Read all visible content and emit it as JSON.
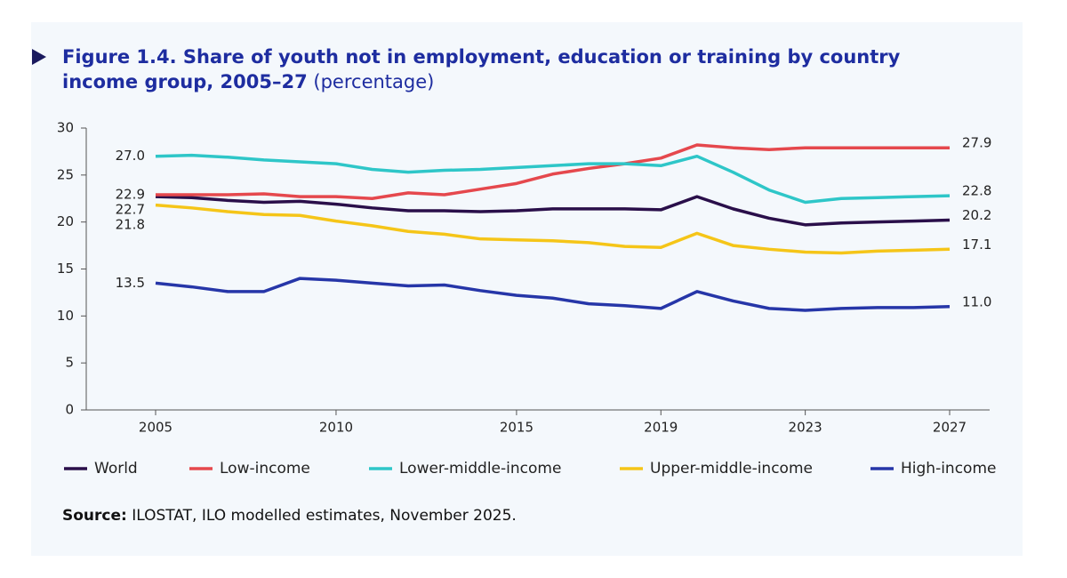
{
  "chart_data": {
    "type": "line",
    "title": "Figure 1.4. Share of youth not in employment, education or training by country income group, 2005–27",
    "title_note": "(percentage)",
    "source_label": "Source:",
    "source": "ILOSTAT, ILO modelled estimates, November 2025.",
    "x": [
      2005,
      2006,
      2007,
      2008,
      2009,
      2010,
      2011,
      2012,
      2013,
      2014,
      2015,
      2016,
      2017,
      2018,
      2019,
      2020,
      2021,
      2022,
      2023,
      2024,
      2025,
      2026,
      2027
    ],
    "xlim": [
      2005,
      2027
    ],
    "xticks": [
      2005,
      2010,
      2015,
      2019,
      2023,
      2027
    ],
    "ylim": [
      0,
      30
    ],
    "yticks": [
      0,
      5,
      10,
      15,
      20,
      25,
      30
    ],
    "grid": false,
    "legend": "bottom",
    "series": [
      {
        "name": "World",
        "color": "#2a0f4a",
        "values": [
          22.7,
          22.6,
          22.3,
          22.1,
          22.2,
          21.9,
          21.5,
          21.2,
          21.2,
          21.1,
          21.2,
          21.4,
          21.4,
          21.4,
          21.3,
          22.7,
          21.4,
          20.4,
          19.7,
          19.9,
          20.0,
          20.1,
          20.2
        ],
        "value_labels": [
          "22.7",
          null,
          null,
          null,
          null,
          null,
          null,
          null,
          null,
          null,
          null,
          null,
          null,
          null,
          null,
          null,
          null,
          null,
          null,
          null,
          null,
          null,
          "20.2"
        ]
      },
      {
        "name": "Low-income",
        "color": "#e5484d",
        "values": [
          22.9,
          22.9,
          22.9,
          23.0,
          22.7,
          22.7,
          22.5,
          23.1,
          22.9,
          23.5,
          24.1,
          25.1,
          25.7,
          26.2,
          26.8,
          28.2,
          27.9,
          27.7,
          27.9,
          27.9,
          27.9,
          27.9,
          27.9
        ],
        "value_labels": [
          "22.9",
          null,
          null,
          null,
          null,
          null,
          null,
          null,
          null,
          null,
          null,
          null,
          null,
          null,
          null,
          null,
          null,
          null,
          null,
          null,
          null,
          null,
          "27.9"
        ]
      },
      {
        "name": "Lower-middle-income",
        "color": "#2ec6c8",
        "values": [
          27.0,
          27.1,
          26.9,
          26.6,
          26.4,
          26.2,
          25.6,
          25.3,
          25.5,
          25.6,
          25.8,
          26.0,
          26.2,
          26.2,
          26.0,
          27.0,
          25.3,
          23.4,
          22.1,
          22.5,
          22.6,
          22.7,
          22.8
        ],
        "value_labels": [
          "27.0",
          null,
          null,
          null,
          null,
          null,
          null,
          null,
          null,
          null,
          null,
          null,
          null,
          null,
          null,
          null,
          null,
          null,
          null,
          null,
          null,
          null,
          "22.8"
        ]
      },
      {
        "name": "Upper-middle-income",
        "color": "#f5c518",
        "values": [
          21.8,
          21.5,
          21.1,
          20.8,
          20.7,
          20.1,
          19.6,
          19.0,
          18.7,
          18.2,
          18.1,
          18.0,
          17.8,
          17.4,
          17.3,
          18.8,
          17.5,
          17.1,
          16.8,
          16.7,
          16.9,
          17.0,
          17.1
        ],
        "value_labels": [
          "21.8",
          null,
          null,
          null,
          null,
          null,
          null,
          null,
          null,
          null,
          null,
          null,
          null,
          null,
          null,
          null,
          null,
          null,
          null,
          null,
          null,
          null,
          "17.1"
        ]
      },
      {
        "name": "High-income",
        "color": "#2636a8",
        "values": [
          13.5,
          13.1,
          12.6,
          12.6,
          14.0,
          13.8,
          13.5,
          13.2,
          13.3,
          12.7,
          12.2,
          11.9,
          11.3,
          11.1,
          10.8,
          12.6,
          11.6,
          10.8,
          10.6,
          10.8,
          10.9,
          10.9,
          11.0
        ],
        "value_labels": [
          "13.5",
          null,
          null,
          null,
          null,
          null,
          null,
          null,
          null,
          null,
          null,
          null,
          null,
          null,
          null,
          null,
          null,
          null,
          null,
          null,
          null,
          null,
          "11.0"
        ]
      }
    ]
  }
}
